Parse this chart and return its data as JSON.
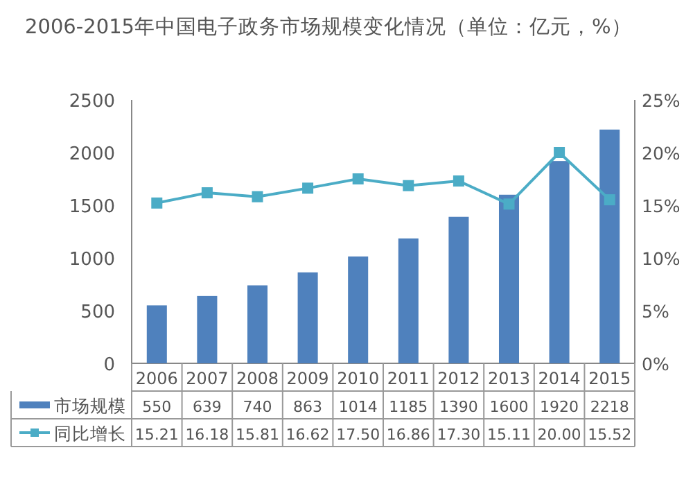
{
  "chart_data": {
    "type": "bar",
    "title": "2006-2015年中国电子政务市场规模变化情况（单位：亿元，%）",
    "categories": [
      "2006",
      "2007",
      "2008",
      "2009",
      "2010",
      "2011",
      "2012",
      "2013",
      "2014",
      "2015"
    ],
    "series": [
      {
        "name": "市场规模",
        "color": "#4f81bd",
        "values": [
          550,
          639,
          740,
          863,
          1014,
          1185,
          1390,
          1600,
          1920,
          2218
        ],
        "value_labels": [
          "550",
          "639",
          "740",
          "863",
          "1014",
          "1185",
          "1390",
          "1600",
          "1920",
          "2218"
        ]
      },
      {
        "name": "同比增长",
        "type": "line",
        "axis": "y2",
        "color": "#4bacc6",
        "marker": "square",
        "values": [
          15.21,
          16.18,
          15.81,
          16.62,
          17.5,
          16.86,
          17.3,
          15.11,
          20.0,
          15.52
        ],
        "value_labels": [
          "15.21",
          "16.18",
          "15.81",
          "16.62",
          "17.50",
          "16.86",
          "17.30",
          "15.11",
          "20.00",
          "15.52"
        ]
      }
    ],
    "ylim": [
      0,
      2500
    ],
    "yticks": [
      0,
      500,
      1000,
      1500,
      2000,
      2500
    ],
    "y2lim": [
      0,
      25
    ],
    "y2ticks": [
      {
        "value": 0,
        "label": "0%"
      },
      {
        "value": 5,
        "label": "5%"
      },
      {
        "value": 10,
        "label": "10%"
      },
      {
        "value": 15,
        "label": "15%"
      },
      {
        "value": 20,
        "label": "20%"
      },
      {
        "value": 25,
        "label": "25%"
      }
    ],
    "legend": "bottom left",
    "grid": false
  }
}
